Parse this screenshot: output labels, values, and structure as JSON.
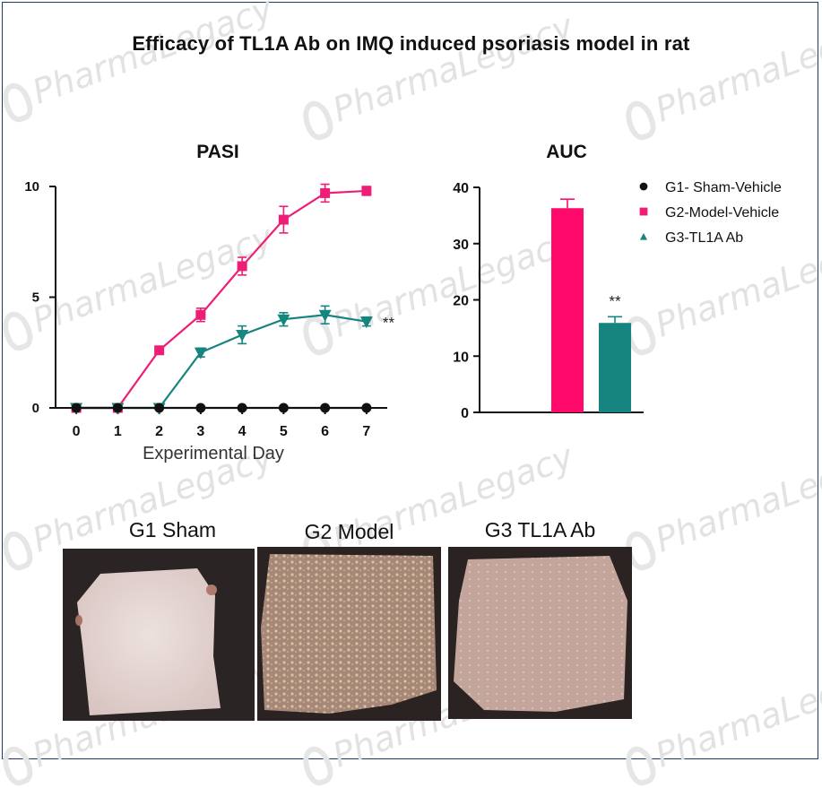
{
  "figure": {
    "title": "Efficacy of TL1A Ab on IMQ induced psoriasis model in rat",
    "watermark_text": "PharmaLegacy"
  },
  "chart_data": [
    {
      "type": "line",
      "title": "PASI",
      "xlabel": "Experimental Day",
      "ylabel": "",
      "x": [
        0,
        1,
        2,
        3,
        4,
        5,
        6,
        7
      ],
      "xlim": [
        -0.5,
        7.5
      ],
      "ylim": [
        0,
        10
      ],
      "yticks": [
        0,
        5,
        10
      ],
      "series": [
        {
          "name": "G1- Sham-Vehicle",
          "color": "#111111",
          "marker": "circle",
          "values": [
            0,
            0,
            0,
            0,
            0,
            0,
            0,
            0
          ],
          "errors": [
            0,
            0,
            0,
            0,
            0,
            0,
            0,
            0
          ]
        },
        {
          "name": "G2-Model-Vehicle",
          "color": "#ee1e76",
          "marker": "square",
          "values": [
            0,
            0,
            2.6,
            4.2,
            6.4,
            8.5,
            9.7,
            9.8
          ],
          "errors": [
            0,
            0,
            0.1,
            0.3,
            0.4,
            0.6,
            0.4,
            0.2
          ]
        },
        {
          "name": "G3-TL1A Ab",
          "color": "#17857f",
          "marker": "triangle-down",
          "values": [
            0,
            0,
            0,
            2.5,
            3.3,
            4.0,
            4.2,
            3.9
          ],
          "errors": [
            0,
            0,
            0,
            0.2,
            0.4,
            0.3,
            0.4,
            0.2
          ]
        }
      ],
      "annotation": {
        "text": "**",
        "x": 7,
        "series": "G3-TL1A Ab"
      }
    },
    {
      "type": "bar",
      "title": "AUC",
      "categories": [
        "G1- Sham-Vehicle",
        "G2-Model-Vehicle",
        "G3-TL1A Ab"
      ],
      "values": [
        0,
        36.3,
        15.9
      ],
      "errors": [
        0,
        1.6,
        1.1
      ],
      "colors": [
        "#111111",
        "#ff0a6a",
        "#17857f"
      ],
      "ylim": [
        0,
        40
      ],
      "yticks": [
        0,
        10,
        20,
        30,
        40
      ],
      "annotation": {
        "text": "**",
        "category": "G3-TL1A Ab"
      },
      "legend": {
        "position": "top-right",
        "entries": [
          {
            "label": "G1- Sham-Vehicle",
            "marker": "circle",
            "color": "#111111"
          },
          {
            "label": "G2-Model-Vehicle",
            "marker": "square",
            "color": "#ee1e76"
          },
          {
            "label": "G3-TL1A Ab",
            "marker": "triangle",
            "color": "#17857f"
          }
        ]
      }
    }
  ],
  "photos": [
    {
      "label": "G1 Sham",
      "skin_color": "#e6d7d3"
    },
    {
      "label": "G2 Model",
      "skin_color": "#b09082"
    },
    {
      "label": "G3 TL1A Ab",
      "skin_color": "#c8aca3"
    }
  ]
}
